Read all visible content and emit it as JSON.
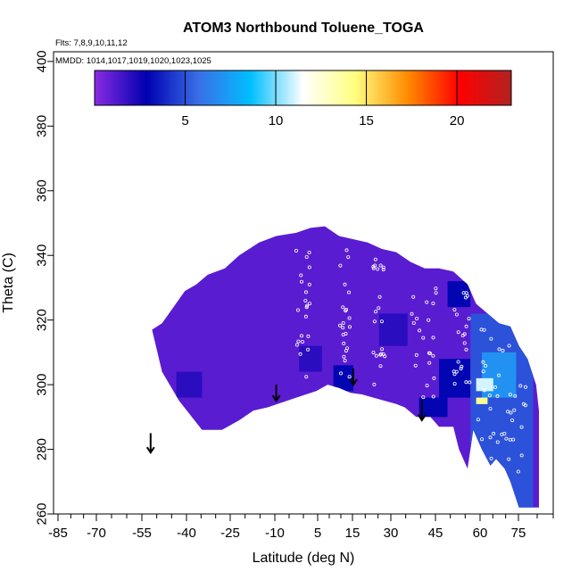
{
  "chart_data": {
    "type": "heatmap",
    "title": "ATOM3 Northbound Toluene_TOGA",
    "annotations": {
      "flights": "Flts: 7,8,9,10,11,12",
      "dates": "MMDD: 1014,1017,1019,1020,1023,1025"
    },
    "xlabel": "Latitude (deg N)",
    "ylabel": "Theta (C)",
    "xlim": [
      -90,
      85
    ],
    "ylim": [
      260,
      403
    ],
    "x_tick_labels": [
      "-85",
      "-70",
      "-55",
      "-40",
      "-25",
      "-10",
      "5",
      "15",
      "30",
      "45",
      "60",
      "75"
    ],
    "y_ticks": [
      260,
      280,
      300,
      320,
      340,
      360,
      380,
      400
    ],
    "colorbar": {
      "range": [
        0,
        23
      ],
      "ticks": [
        5,
        10,
        15,
        20
      ],
      "colors": [
        "#8a2be2",
        "#0000b0",
        "#3a6fe8",
        "#00bfff",
        "#ffffff",
        "#ffff80",
        "#ff8c00",
        "#ff0000",
        "#b22222"
      ]
    },
    "field": {
      "background_value": 1.0,
      "outline": [
        [
          -55.5,
          317
        ],
        [
          -52,
          319
        ],
        [
          -48,
          324
        ],
        [
          -44,
          329
        ],
        [
          -40,
          331
        ],
        [
          -36,
          334
        ],
        [
          -30,
          336
        ],
        [
          -25,
          340
        ],
        [
          -18,
          344
        ],
        [
          -12,
          346
        ],
        [
          -5,
          347
        ],
        [
          0,
          348.5
        ],
        [
          5,
          349
        ],
        [
          10,
          346
        ],
        [
          15,
          345
        ],
        [
          20,
          344
        ],
        [
          25,
          342
        ],
        [
          30,
          341
        ],
        [
          35,
          338
        ],
        [
          40,
          336
        ],
        [
          45,
          336
        ],
        [
          50,
          335
        ],
        [
          55,
          331
        ],
        [
          58,
          325
        ],
        [
          62,
          322
        ],
        [
          66,
          319
        ],
        [
          70,
          318
        ],
        [
          73,
          312
        ],
        [
          76,
          308
        ],
        [
          79,
          300
        ],
        [
          80,
          292
        ],
        [
          80,
          262
        ],
        [
          73,
          262
        ],
        [
          70,
          270
        ],
        [
          68,
          274
        ],
        [
          65,
          277
        ],
        [
          63,
          275
        ],
        [
          60,
          280
        ],
        [
          57,
          286
        ],
        [
          55,
          274
        ],
        [
          52,
          280
        ],
        [
          50,
          287
        ],
        [
          45,
          287
        ],
        [
          42,
          290
        ],
        [
          37,
          290
        ],
        [
          33,
          293
        ],
        [
          30,
          294
        ],
        [
          22,
          296
        ],
        [
          18,
          297
        ],
        [
          14,
          297.5
        ],
        [
          10,
          299
        ],
        [
          6,
          300
        ],
        [
          2,
          298
        ],
        [
          -5,
          296
        ],
        [
          -15,
          293
        ],
        [
          -20,
          292
        ],
        [
          -25,
          289
        ],
        [
          -31,
          286
        ],
        [
          -38,
          286
        ],
        [
          -46,
          295
        ],
        [
          -52,
          304
        ],
        [
          -55.5,
          317
        ]
      ],
      "blobs": [
        {
          "x": [
            -47,
            -38
          ],
          "y": [
            296,
            304
          ],
          "value": 2.0
        },
        {
          "x": [
            -4,
            4
          ],
          "y": [
            304,
            312
          ],
          "value": 2.0
        },
        {
          "x": [
            8,
            15
          ],
          "y": [
            298,
            306
          ],
          "value": 3.0
        },
        {
          "x": [
            24,
            34
          ],
          "y": [
            312,
            322
          ],
          "value": 2.0
        },
        {
          "x": [
            38,
            48
          ],
          "y": [
            290,
            296
          ],
          "value": 3.0
        },
        {
          "x": [
            48,
            56
          ],
          "y": [
            324,
            332
          ],
          "value": 3.0
        },
        {
          "x": [
            45,
            56
          ],
          "y": [
            296,
            308
          ],
          "value": 3.0
        },
        {
          "x": [
            56,
            78
          ],
          "y": [
            262,
            322
          ],
          "value": 5.0
        },
        {
          "x": [
            60,
            72
          ],
          "y": [
            296,
            310
          ],
          "value": 7.0
        },
        {
          "x": [
            58,
            64
          ],
          "y": [
            298,
            302
          ],
          "value": 11.0
        },
        {
          "x": [
            58,
            62
          ],
          "y": [
            294,
            296
          ],
          "value": 14.0
        }
      ]
    },
    "profile_markers": [
      {
        "x": -56,
        "y": [
          285,
          279
        ]
      },
      {
        "x": -12,
        "y": [
          300,
          295
        ]
      },
      {
        "x": 15,
        "y": [
          305,
          300
        ]
      },
      {
        "x": 39,
        "y": [
          295,
          289
        ]
      }
    ]
  }
}
